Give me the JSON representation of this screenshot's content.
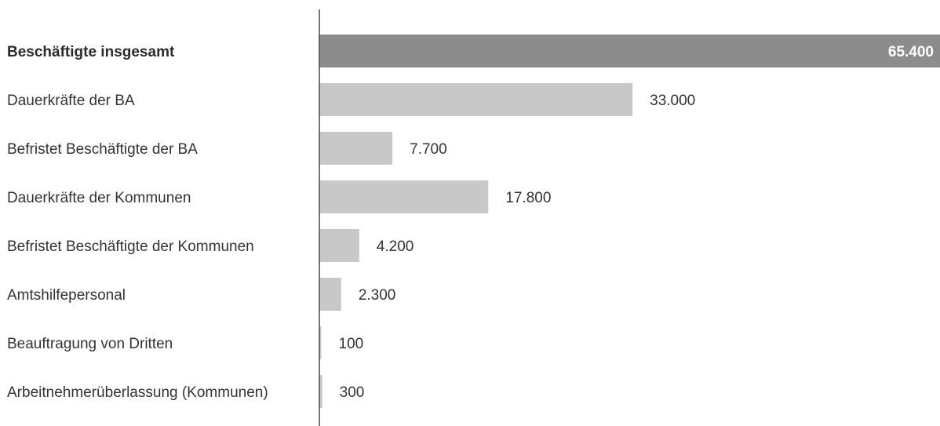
{
  "chart_data": {
    "type": "bar",
    "orientation": "horizontal",
    "categories": [
      "Beschäftigte insgesamt",
      "Dauerkräfte der BA",
      "Befristet Beschäftigte der BA",
      "Dauerkräfte der Kommunen",
      "Befristet Beschäftigte der Kommunen",
      "Amtshilfepersonal",
      "Beauftragung von Dritten",
      "Arbeitnehmerüberlassung (Kommunen)"
    ],
    "values": [
      65400,
      33000,
      7700,
      17800,
      4200,
      2300,
      100,
      300
    ],
    "value_labels": [
      "65.400",
      "33.000",
      "7.700",
      "17.800",
      "4.200",
      "2.300",
      "100",
      "300"
    ],
    "highlighted_index": 0,
    "colors": {
      "total_bar": "#8c8c8c",
      "bar": "#c8c8c8",
      "axis": "#4a4a4a",
      "text": "#333333"
    },
    "xlim": [
      0,
      65400
    ],
    "grid": false,
    "legend": "none"
  }
}
